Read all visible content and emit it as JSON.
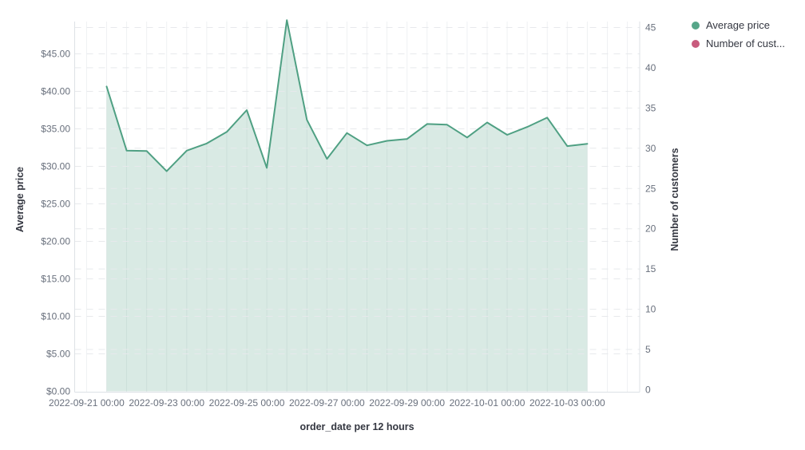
{
  "chart_data": {
    "type": "area",
    "title": "",
    "xlabel": "order_date per 12 hours",
    "ylabel_left": "Average price",
    "ylabel_right": "Number of customers",
    "x": [
      "2022-09-21 12:00",
      "2022-09-22 00:00",
      "2022-09-22 12:00",
      "2022-09-23 00:00",
      "2022-09-23 12:00",
      "2022-09-24 00:00",
      "2022-09-24 12:00",
      "2022-09-25 00:00",
      "2022-09-25 12:00",
      "2022-09-26 00:00",
      "2022-09-26 12:00",
      "2022-09-27 00:00",
      "2022-09-27 12:00",
      "2022-09-28 00:00",
      "2022-09-28 12:00",
      "2022-09-29 00:00",
      "2022-09-29 12:00",
      "2022-09-30 00:00",
      "2022-09-30 12:00",
      "2022-10-01 00:00",
      "2022-10-01 12:00",
      "2022-10-02 00:00",
      "2022-10-02 12:00",
      "2022-10-03 00:00",
      "2022-10-03 12:00"
    ],
    "series": [
      {
        "name": "Average price",
        "axis": "left",
        "line_color": "#4fa083",
        "fill_color": "rgba(84,160,131,0.22)",
        "values": [
          40.65,
          32.1,
          32.05,
          29.35,
          32.1,
          33.05,
          34.6,
          37.5,
          29.8,
          49.5,
          36.2,
          31.0,
          34.45,
          32.8,
          33.4,
          33.65,
          35.65,
          35.55,
          33.85,
          35.85,
          34.2,
          35.25,
          36.5,
          32.7,
          33.0
        ]
      },
      {
        "name": "Number of customers",
        "axis": "right",
        "line_color": "#c85b7d",
        "fill_color": "rgba(200,91,125,0.22)",
        "values": []
      }
    ],
    "x_tick_labels": [
      "2022-09-21 00:00",
      "2022-09-23 00:00",
      "2022-09-25 00:00",
      "2022-09-27 00:00",
      "2022-09-29 00:00",
      "2022-10-01 00:00",
      "2022-10-03 00:00"
    ],
    "y_left_tick_labels": [
      "$0.00",
      "$5.00",
      "$10.00",
      "$15.00",
      "$20.00",
      "$25.00",
      "$30.00",
      "$35.00",
      "$40.00",
      "$45.00"
    ],
    "y_right_tick_labels": [
      "0",
      "5",
      "10",
      "15",
      "20",
      "25",
      "30",
      "35",
      "40",
      "45"
    ],
    "y_left_range": [
      0,
      45
    ],
    "y_right_range": [
      0,
      45
    ],
    "grid": {
      "vertical": "solid",
      "horizontal": "dashed"
    },
    "legend_position": "top-right"
  },
  "legend": {
    "items": [
      {
        "label": "Average price",
        "color": "#56a689"
      },
      {
        "label": "Number of cust...",
        "color": "#c85b7d"
      }
    ]
  },
  "colors": {
    "background": "#ffffff",
    "axis_line": "#dde1e6",
    "grid_vertical": "#eff1f3",
    "grid_dashed": "#e7e9ec",
    "tick_text": "#69707d",
    "title_text": "#343741"
  }
}
